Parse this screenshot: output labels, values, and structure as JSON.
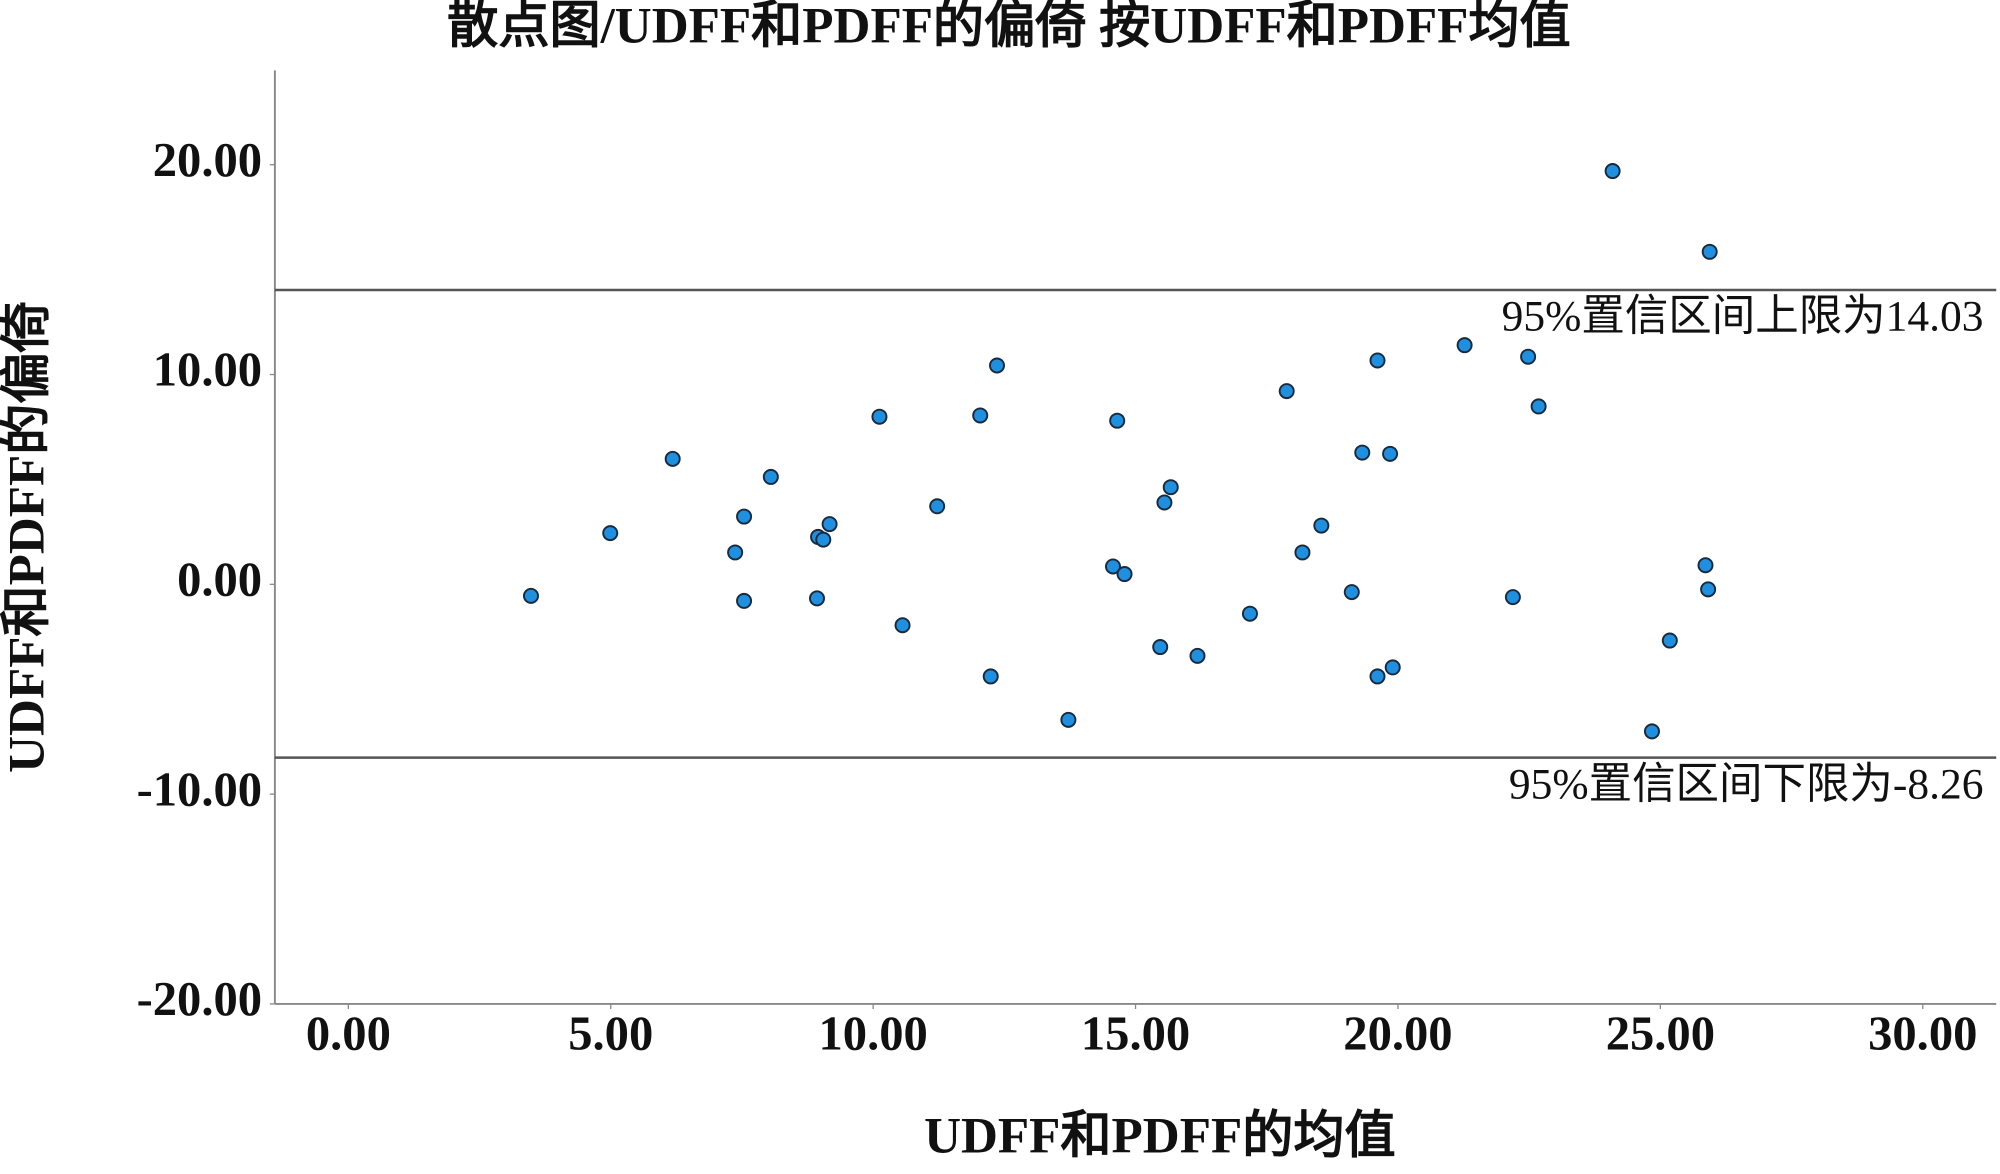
{
  "chart_data": {
    "type": "scatter",
    "title": "散点图/UDFF和PDFF的偏倚  按UDFF和PDFF均值",
    "x_label": "UDFF和PDFF的均值",
    "y_label": "UDFF和PDFF的偏倚",
    "color": "#1f8fe0",
    "xlim": [
      -1.4,
      31.4
    ],
    "ylim": [
      -20,
      24.5
    ],
    "xticks": [
      {
        "value": 0,
        "label": "0.00"
      },
      {
        "value": 5,
        "label": "5.00"
      },
      {
        "value": 10,
        "label": "10.00"
      },
      {
        "value": 15,
        "label": "15.00"
      },
      {
        "value": 20,
        "label": "20.00"
      },
      {
        "value": 25,
        "label": "25.00"
      },
      {
        "value": 30,
        "label": "30.00"
      }
    ],
    "yticks": [
      {
        "value": -20,
        "label": "-20.00"
      },
      {
        "value": -10,
        "label": "-10.00"
      },
      {
        "value": 0,
        "label": "0.00"
      },
      {
        "value": 10,
        "label": "10.00"
      },
      {
        "value": 20,
        "label": "20.00"
      }
    ],
    "reference_lines": [
      {
        "value": 14.03,
        "label": "95%置信区间上限为14.03"
      },
      {
        "value": -8.26,
        "label": "95%置信区间下限为-8.26"
      }
    ],
    "x": [
      3.48,
      4.99,
      6.18,
      7.37,
      7.54,
      7.54,
      8.05,
      8.95,
      9.05,
      9.17,
      8.93,
      10.12,
      10.56,
      11.22,
      12.04,
      12.24,
      12.36,
      13.72,
      14.57,
      14.65,
      14.79,
      15.47,
      15.55,
      15.67,
      16.18,
      17.18,
      17.88,
      18.18,
      18.54,
      19.12,
      19.32,
      19.61,
      19.61,
      19.85,
      19.9,
      21.27,
      22.19,
      22.48,
      22.68,
      24.09,
      24.84,
      25.18,
      25.86,
      25.91,
      25.94
    ],
    "values": [
      -0.55,
      2.44,
      5.98,
      1.52,
      3.23,
      -0.79,
      5.12,
      2.26,
      2.13,
      2.87,
      -0.67,
      7.99,
      -1.95,
      3.72,
      8.05,
      -4.39,
      10.43,
      -6.46,
      0.85,
      7.8,
      0.49,
      -2.99,
      3.9,
      4.63,
      -3.41,
      -1.4,
      9.21,
      1.52,
      2.8,
      -0.37,
      6.28,
      10.67,
      -4.39,
      6.22,
      -3.96,
      11.4,
      -0.61,
      10.85,
      8.48,
      19.7,
      -7.01,
      -2.68,
      0.91,
      -0.24,
      15.85
    ]
  }
}
